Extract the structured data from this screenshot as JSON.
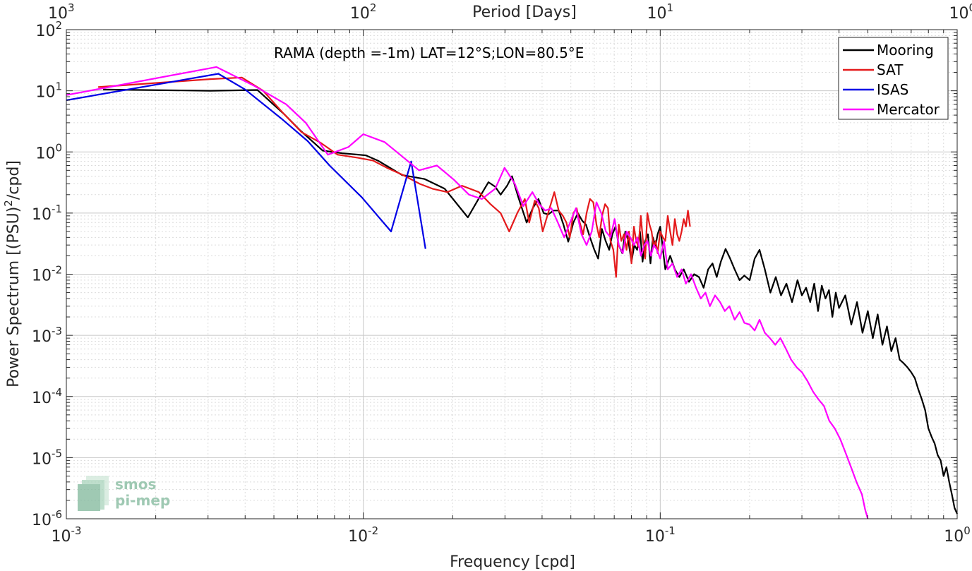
{
  "chart_data": {
    "type": "line",
    "title": "RAMA (depth =-1m) LAT=12°S;LON=80.5°E",
    "xlabel": "Frequency [cpd]",
    "ylabel_main": "Power Spectrum [(PSU)",
    "ylabel_sup": "2",
    "ylabel_tail": "/cpd]",
    "top_axis_label": "Period [Days]",
    "xscale": "log",
    "yscale": "log",
    "xlim": [
      0.001,
      1
    ],
    "ylim": [
      1e-06,
      100
    ],
    "grid": true,
    "legend_position": "top-right",
    "x_ticks": [
      {
        "base": "10",
        "exp": "-3"
      },
      {
        "base": "10",
        "exp": "-2"
      },
      {
        "base": "10",
        "exp": "-1"
      },
      {
        "base": "10",
        "exp": "0"
      }
    ],
    "y_ticks": [
      {
        "base": "10",
        "exp": "-6"
      },
      {
        "base": "10",
        "exp": "-5"
      },
      {
        "base": "10",
        "exp": "-4"
      },
      {
        "base": "10",
        "exp": "-3"
      },
      {
        "base": "10",
        "exp": "-2"
      },
      {
        "base": "10",
        "exp": "-1"
      },
      {
        "base": "10",
        "exp": "0"
      },
      {
        "base": "10",
        "exp": "1"
      },
      {
        "base": "10",
        "exp": "2"
      }
    ],
    "top_ticks": [
      {
        "base": "10",
        "exp": "3"
      },
      {
        "base": "10",
        "exp": "2"
      },
      {
        "base": "10",
        "exp": "1"
      },
      {
        "base": "10",
        "exp": "0"
      }
    ],
    "series": [
      {
        "name": "Mooring",
        "color": "#000000",
        "x": [
          0.00133,
          0.00305,
          0.0044,
          0.0054,
          0.0061,
          0.0073,
          0.0085,
          0.0102,
          0.0112,
          0.0135,
          0.0161,
          0.0188,
          0.0225,
          0.0246,
          0.0264,
          0.0278,
          0.029,
          0.0305,
          0.0317,
          0.0333,
          0.0355,
          0.0372,
          0.0389,
          0.0405,
          0.042,
          0.0437,
          0.0455,
          0.0472,
          0.049,
          0.051,
          0.0528,
          0.0546,
          0.0562,
          0.058,
          0.06,
          0.0618,
          0.0636,
          0.0655,
          0.0673,
          0.069,
          0.0707,
          0.0725,
          0.0745,
          0.0763,
          0.0781,
          0.08,
          0.0818,
          0.0836,
          0.0855,
          0.0872,
          0.089,
          0.0909,
          0.0927,
          0.0945,
          0.0963,
          0.098,
          0.1,
          0.104,
          0.108,
          0.112,
          0.116,
          0.12,
          0.125,
          0.13,
          0.135,
          0.14,
          0.145,
          0.15,
          0.155,
          0.16,
          0.166,
          0.172,
          0.178,
          0.185,
          0.192,
          0.2,
          0.208,
          0.216,
          0.225,
          0.235,
          0.245,
          0.255,
          0.266,
          0.278,
          0.29,
          0.3,
          0.31,
          0.32,
          0.33,
          0.34,
          0.35,
          0.36,
          0.37,
          0.38,
          0.39,
          0.4,
          0.42,
          0.44,
          0.46,
          0.48,
          0.5,
          0.52,
          0.54,
          0.56,
          0.58,
          0.6,
          0.62,
          0.64,
          0.66,
          0.68,
          0.7,
          0.72,
          0.74,
          0.76,
          0.78,
          0.8,
          0.82,
          0.84,
          0.86,
          0.88,
          0.9,
          0.92,
          0.94,
          0.96,
          0.98,
          1.0
        ],
        "y": [
          10.5,
          10.0,
          10.3,
          4.2,
          2.3,
          1.05,
          0.95,
          0.88,
          0.72,
          0.42,
          0.36,
          0.25,
          0.085,
          0.18,
          0.32,
          0.27,
          0.2,
          0.28,
          0.4,
          0.18,
          0.07,
          0.12,
          0.17,
          0.1,
          0.095,
          0.11,
          0.11,
          0.065,
          0.034,
          0.07,
          0.1,
          0.075,
          0.065,
          0.04,
          0.025,
          0.018,
          0.055,
          0.035,
          0.025,
          0.045,
          0.06,
          0.03,
          0.022,
          0.05,
          0.035,
          0.016,
          0.03,
          0.025,
          0.05,
          0.016,
          0.035,
          0.045,
          0.015,
          0.04,
          0.028,
          0.045,
          0.06,
          0.012,
          0.02,
          0.012,
          0.009,
          0.012,
          0.0075,
          0.01,
          0.009,
          0.006,
          0.012,
          0.015,
          0.009,
          0.016,
          0.026,
          0.018,
          0.012,
          0.008,
          0.0095,
          0.008,
          0.018,
          0.025,
          0.012,
          0.005,
          0.009,
          0.0045,
          0.007,
          0.0035,
          0.008,
          0.0045,
          0.006,
          0.0035,
          0.007,
          0.0025,
          0.0065,
          0.004,
          0.0055,
          0.002,
          0.005,
          0.0028,
          0.0045,
          0.0015,
          0.0035,
          0.0011,
          0.0025,
          0.0009,
          0.0022,
          0.0007,
          0.0014,
          0.00055,
          0.0009,
          0.0004,
          0.00035,
          0.0003,
          0.00025,
          0.0002,
          0.00013,
          9e-05,
          6e-05,
          3e-05,
          2.2e-05,
          1.7e-05,
          1.1e-05,
          9e-06,
          5e-06,
          7e-06,
          4e-06,
          2.5e-06,
          1.5e-06,
          1.2e-06
        ]
      },
      {
        "name": "SAT",
        "color": "#e41a1c",
        "x": [
          0.00128,
          0.00305,
          0.0039,
          0.0046,
          0.0054,
          0.0062,
          0.0072,
          0.0082,
          0.0096,
          0.0108,
          0.012,
          0.0136,
          0.0155,
          0.0171,
          0.0192,
          0.0215,
          0.0245,
          0.0268,
          0.029,
          0.031,
          0.033,
          0.035,
          0.0362,
          0.0378,
          0.039,
          0.0402,
          0.0415,
          0.0428,
          0.044,
          0.0455,
          0.047,
          0.0483,
          0.0496,
          0.051,
          0.0523,
          0.0536,
          0.055,
          0.0565,
          0.058,
          0.0595,
          0.061,
          0.0623,
          0.0637,
          0.0652,
          0.0667,
          0.068,
          0.0695,
          0.071,
          0.0725,
          0.074,
          0.0755,
          0.077,
          0.0785,
          0.08,
          0.0815,
          0.083,
          0.0845,
          0.086,
          0.0875,
          0.089,
          0.0905,
          0.092,
          0.0935,
          0.095,
          0.0965,
          0.098,
          0.1,
          0.102,
          0.104,
          0.106,
          0.108,
          0.11,
          0.112,
          0.114,
          0.116,
          0.118,
          0.12,
          0.122,
          0.124,
          0.126
        ],
        "y": [
          11.5,
          15.5,
          16.5,
          10.0,
          4.2,
          2.1,
          1.4,
          0.9,
          0.8,
          0.72,
          0.55,
          0.42,
          0.3,
          0.25,
          0.22,
          0.28,
          0.22,
          0.14,
          0.1,
          0.05,
          0.1,
          0.17,
          0.07,
          0.16,
          0.12,
          0.05,
          0.085,
          0.14,
          0.22,
          0.11,
          0.09,
          0.07,
          0.04,
          0.1,
          0.12,
          0.07,
          0.045,
          0.1,
          0.17,
          0.15,
          0.065,
          0.04,
          0.09,
          0.14,
          0.12,
          0.035,
          0.025,
          0.009,
          0.065,
          0.035,
          0.045,
          0.025,
          0.05,
          0.015,
          0.06,
          0.035,
          0.028,
          0.09,
          0.035,
          0.018,
          0.1,
          0.065,
          0.05,
          0.028,
          0.035,
          0.022,
          0.05,
          0.04,
          0.035,
          0.09,
          0.05,
          0.03,
          0.08,
          0.045,
          0.035,
          0.05,
          0.08,
          0.06,
          0.11,
          0.06
        ]
      },
      {
        "name": "ISAS",
        "color": "#0000e6",
        "x": [
          0.001,
          0.00325,
          0.004,
          0.0053,
          0.0065,
          0.0077,
          0.0099,
          0.0124,
          0.0145,
          0.0162
        ],
        "y": [
          7.0,
          19.0,
          10.5,
          3.5,
          1.5,
          0.6,
          0.18,
          0.05,
          0.7,
          0.026
        ]
      },
      {
        "name": "Mercator",
        "color": "#ff00ff",
        "x": [
          0.001,
          0.0032,
          0.0043,
          0.0055,
          0.0064,
          0.0076,
          0.0089,
          0.01,
          0.0118,
          0.0133,
          0.0154,
          0.0177,
          0.0202,
          0.0227,
          0.0251,
          0.0278,
          0.0299,
          0.0324,
          0.0346,
          0.0371,
          0.0391,
          0.041,
          0.043,
          0.0452,
          0.0475,
          0.0497,
          0.052,
          0.0543,
          0.0565,
          0.0588,
          0.061,
          0.0633,
          0.0656,
          0.068,
          0.0702,
          0.0725,
          0.0748,
          0.077,
          0.0793,
          0.0816,
          0.0838,
          0.0861,
          0.0884,
          0.0906,
          0.093,
          0.0952,
          0.0975,
          0.1,
          0.103,
          0.106,
          0.11,
          0.114,
          0.118,
          0.122,
          0.127,
          0.132,
          0.137,
          0.142,
          0.147,
          0.153,
          0.159,
          0.165,
          0.171,
          0.178,
          0.185,
          0.192,
          0.2,
          0.208,
          0.216,
          0.225,
          0.234,
          0.244,
          0.254,
          0.265,
          0.276,
          0.288,
          0.3,
          0.313,
          0.327,
          0.341,
          0.356,
          0.371,
          0.387,
          0.404,
          0.421,
          0.439,
          0.458,
          0.478,
          0.49,
          0.5
        ],
        "y": [
          8.5,
          24.5,
          12.0,
          6.0,
          3.0,
          0.9,
          1.2,
          1.95,
          1.45,
          0.9,
          0.5,
          0.6,
          0.35,
          0.2,
          0.17,
          0.25,
          0.55,
          0.3,
          0.13,
          0.22,
          0.14,
          0.11,
          0.12,
          0.07,
          0.04,
          0.07,
          0.12,
          0.045,
          0.03,
          0.05,
          0.15,
          0.1,
          0.05,
          0.04,
          0.08,
          0.03,
          0.022,
          0.05,
          0.04,
          0.03,
          0.04,
          0.02,
          0.03,
          0.035,
          0.02,
          0.03,
          0.025,
          0.018,
          0.035,
          0.012,
          0.015,
          0.009,
          0.012,
          0.007,
          0.01,
          0.006,
          0.004,
          0.005,
          0.003,
          0.0045,
          0.0035,
          0.0025,
          0.003,
          0.0018,
          0.0024,
          0.0016,
          0.0015,
          0.0012,
          0.0018,
          0.0011,
          0.0009,
          0.0007,
          0.0009,
          0.0006,
          0.0004,
          0.0003,
          0.00025,
          0.00018,
          0.00012,
          9e-05,
          7e-05,
          4e-05,
          3e-05,
          2e-05,
          1.2e-05,
          7e-06,
          4e-06,
          2.5e-06,
          1.4e-06,
          1e-06
        ]
      }
    ]
  },
  "logo": {
    "line1": "smos",
    "line2": "pi-mep"
  }
}
